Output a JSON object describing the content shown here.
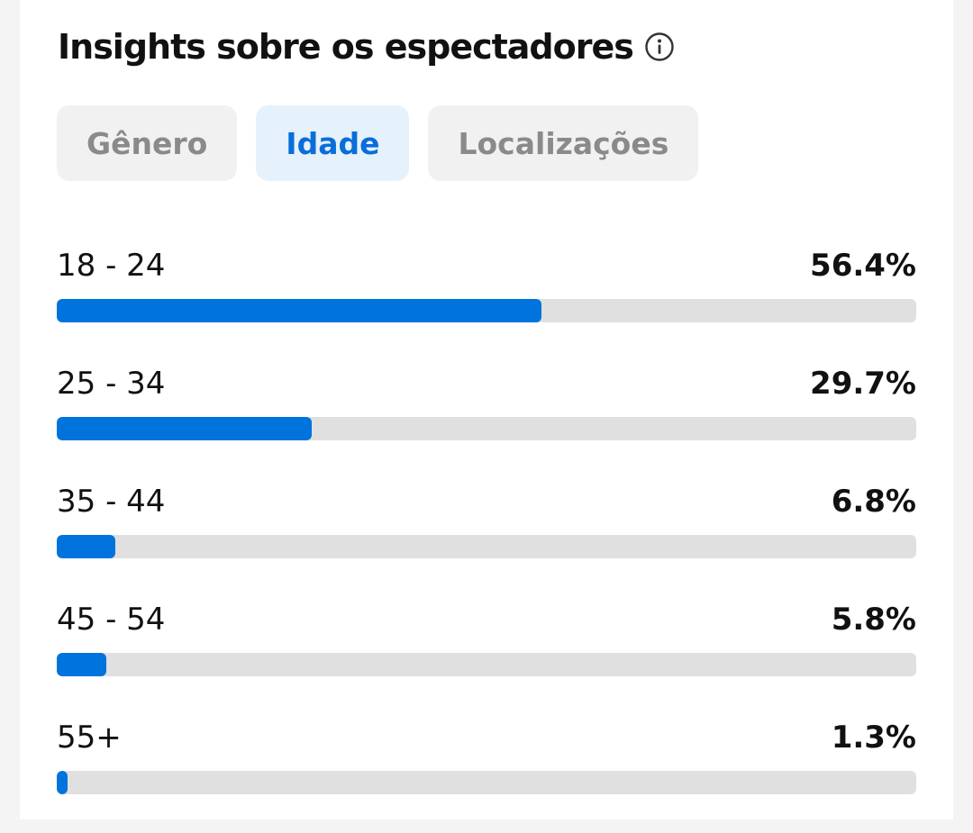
{
  "header": {
    "title": "Insights sobre os espectadores",
    "info_icon": "info-circle-icon"
  },
  "tabs": [
    {
      "label": "Gênero",
      "active": false
    },
    {
      "label": "Idade",
      "active": true
    },
    {
      "label": "Localizações",
      "active": false
    }
  ],
  "colors": {
    "accent": "#0073dc",
    "track": "#e0e0e0",
    "active_tab_bg": "#e5f1fb",
    "active_tab_text": "#0a6ed8"
  },
  "age_rows": [
    {
      "label": "18 - 24",
      "value_text": "56.4%",
      "percent": 56.4
    },
    {
      "label": "25 - 34",
      "value_text": "29.7%",
      "percent": 29.7
    },
    {
      "label": "35 - 44",
      "value_text": "6.8%",
      "percent": 6.8
    },
    {
      "label": "45 - 54",
      "value_text": "5.8%",
      "percent": 5.8
    },
    {
      "label": "55+",
      "value_text": "1.3%",
      "percent": 1.3
    }
  ]
}
